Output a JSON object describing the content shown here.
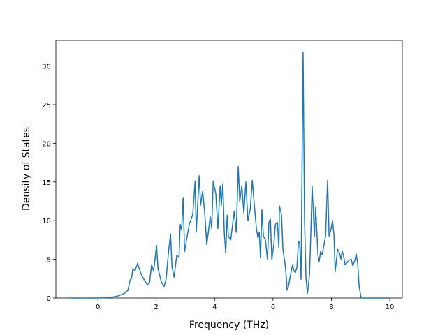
{
  "chart_data": {
    "type": "line",
    "xlabel": "Frequency (THz)",
    "ylabel": "Density of States",
    "color": "#1f77b4",
    "x": [
      -0.96,
      0,
      0.48,
      0.72,
      0.91,
      1.03,
      1.1,
      1.15,
      1.2,
      1.27,
      1.36,
      1.46,
      1.56,
      1.7,
      1.77,
      1.84,
      1.91,
      2.01,
      2.06,
      2.18,
      2.27,
      2.34,
      2.42,
      2.49,
      2.54,
      2.61,
      2.7,
      2.78,
      2.82,
      2.87,
      2.92,
      2.97,
      3.06,
      3.13,
      3.25,
      3.33,
      3.37,
      3.47,
      3.52,
      3.59,
      3.66,
      3.73,
      3.8,
      3.85,
      3.9,
      3.95,
      4.04,
      4.11,
      4.19,
      4.23,
      4.28,
      4.33,
      4.38,
      4.43,
      4.47,
      4.55,
      4.67,
      4.74,
      4.81,
      4.86,
      4.93,
      5.0,
      5.07,
      5.14,
      5.22,
      5.29,
      5.36,
      5.43,
      5.48,
      5.53,
      5.57,
      5.62,
      5.67,
      5.74,
      5.81,
      5.86,
      5.91,
      5.96,
      6.03,
      6.08,
      6.15,
      6.2,
      6.22,
      6.29,
      6.34,
      6.41,
      6.46,
      6.48,
      6.53,
      6.6,
      6.67,
      6.72,
      6.77,
      6.82,
      6.87,
      6.91,
      6.96,
      7.03,
      7.08,
      7.13,
      7.18,
      7.25,
      7.3,
      7.34,
      7.42,
      7.46,
      7.54,
      7.58,
      7.63,
      7.68,
      7.73,
      7.8,
      7.87,
      7.92,
      7.99,
      8.04,
      8.09,
      8.13,
      8.21,
      8.28,
      8.33,
      8.37,
      8.42,
      8.47,
      8.54,
      8.61,
      8.68,
      8.73,
      8.8,
      8.85,
      8.9,
      8.95,
      9.02,
      9.93
    ],
    "values": [
      0,
      0,
      0.1,
      0.3,
      0.6,
      1.0,
      2.3,
      2.5,
      3.8,
      3.5,
      4.5,
      3.3,
      2.5,
      1.7,
      2.0,
      4.3,
      3.5,
      6.8,
      3.8,
      2.0,
      1.5,
      2.5,
      6.0,
      8.2,
      4.0,
      2.7,
      5.5,
      5.3,
      9.5,
      8.8,
      13.0,
      6.0,
      8.0,
      9.5,
      10.8,
      15.1,
      8.5,
      15.8,
      12.0,
      13.8,
      11.0,
      6.9,
      9.0,
      10.5,
      9.0,
      15.1,
      13.5,
      9.0,
      14.5,
      12.0,
      14.8,
      8.5,
      5.8,
      10.7,
      8.0,
      7.5,
      11.2,
      8.5,
      17.0,
      12.5,
      14.5,
      11.0,
      15.0,
      10.0,
      11.5,
      15.2,
      12.0,
      9.0,
      7.8,
      8.5,
      5.2,
      11.4,
      8.0,
      7.5,
      5.0,
      9.8,
      10.2,
      5.0,
      7.0,
      9.5,
      9.8,
      6.5,
      11.9,
      10.8,
      6.2,
      4.5,
      2.5,
      1.0,
      1.5,
      3.0,
      4.3,
      3.5,
      3.3,
      4.0,
      7.2,
      7.3,
      2.4,
      31.8,
      10.0,
      2.5,
      0.6,
      3.0,
      9.0,
      14.4,
      8.0,
      11.8,
      5.5,
      4.7,
      6.0,
      5.6,
      6.5,
      8.0,
      15.2,
      8.0,
      9.0,
      10.0,
      8.0,
      3.4,
      6.3,
      5.8,
      5.0,
      6.1,
      5.4,
      4.3,
      4.6,
      4.9,
      5.0,
      4.2,
      4.8,
      5.7,
      4.5,
      1.5,
      0,
      0
    ],
    "xlim": [
      -1.44,
      10.43
    ],
    "ylim": [
      0,
      33.3
    ],
    "xticks": [
      0,
      2,
      4,
      6,
      8,
      10
    ],
    "yticks": [
      0,
      5,
      10,
      15,
      20,
      25,
      30
    ]
  }
}
